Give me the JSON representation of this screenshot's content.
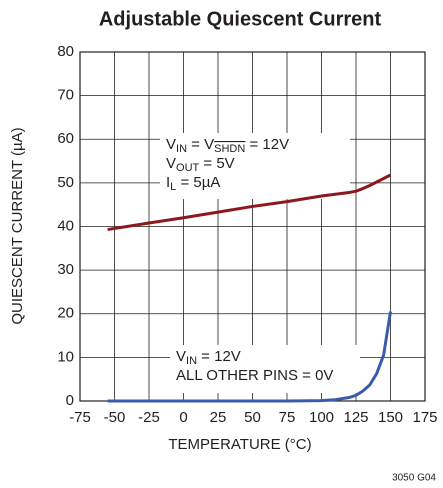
{
  "chart_data": {
    "type": "line",
    "title": "Adjustable Quiescent Current",
    "x_label": "TEMPERATURE (°C)",
    "y_label": "QUIESCENT CURRENT (µA)",
    "footnote": "3050 G04",
    "xlim": [
      -75,
      175
    ],
    "xticks": [
      -75,
      -50,
      -25,
      0,
      25,
      50,
      75,
      100,
      125,
      150,
      175
    ],
    "ylim": [
      0,
      80
    ],
    "yticks": [
      0,
      10,
      20,
      30,
      40,
      50,
      60,
      70,
      80
    ],
    "grid": true,
    "x": [
      -55,
      -25,
      0,
      25,
      50,
      75,
      100,
      110,
      120,
      125,
      130,
      135,
      140,
      145,
      150
    ],
    "series": [
      {
        "color": "#8b1a1e",
        "values": [
          39.3,
          40.8,
          42,
          43.3,
          44.6,
          45.7,
          47,
          47.4,
          47.8,
          48.1,
          48.7,
          49.4,
          50.2,
          51,
          51.8
        ]
      },
      {
        "color": "#3a5bab",
        "values": [
          0,
          0,
          0,
          0,
          0,
          0,
          0.1,
          0.3,
          0.8,
          1.3,
          2.3,
          3.7,
          6.3,
          10.5,
          20.5
        ]
      }
    ],
    "annotations": [
      {
        "lines": [
          [
            {
              "text": "V"
            },
            {
              "text": "IN",
              "sub": true
            },
            {
              "text": " = V"
            },
            {
              "text": "SHDN",
              "sub": true,
              "over": true
            },
            {
              "text": " = 12V"
            }
          ],
          [
            {
              "text": "V"
            },
            {
              "text": "OUT",
              "sub": true
            },
            {
              "text": " = 5V"
            }
          ],
          [
            {
              "text": "I"
            },
            {
              "text": "L",
              "sub": true
            },
            {
              "text": " = 5µA"
            }
          ]
        ]
      },
      {
        "lines": [
          [
            {
              "text": "V"
            },
            {
              "text": "IN",
              "sub": true
            },
            {
              "text": " = 12V"
            }
          ],
          [
            {
              "text": "ALL OTHER PINS = 0V"
            }
          ]
        ]
      }
    ]
  }
}
